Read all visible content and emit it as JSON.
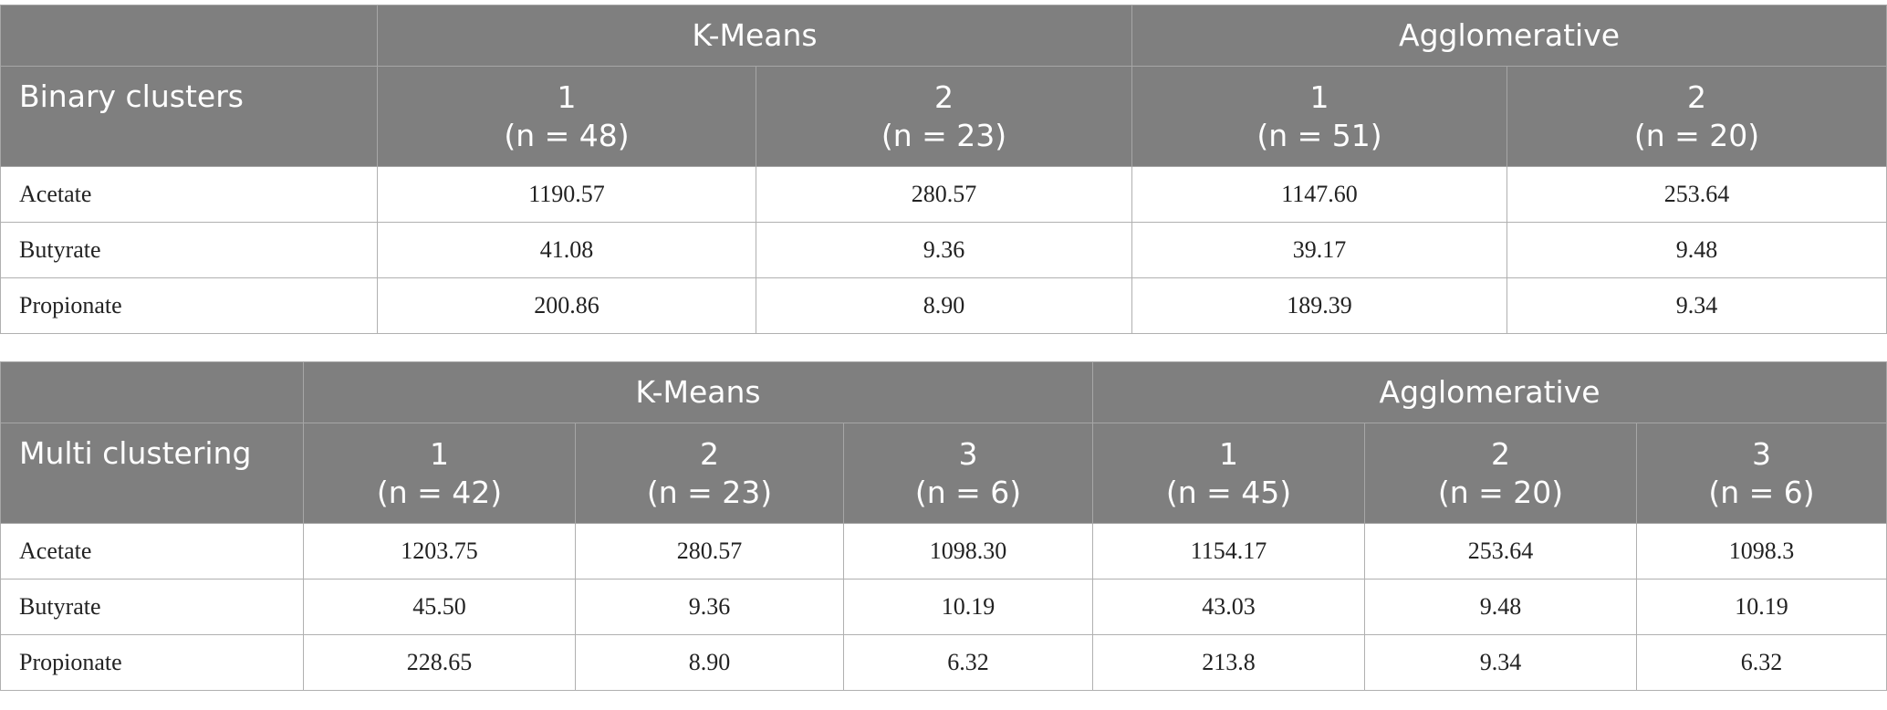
{
  "tables": [
    {
      "corner": "Binary clusters",
      "groups": [
        {
          "name": "K-Means",
          "span": 2
        },
        {
          "name": "Agglomerative",
          "span": 2
        }
      ],
      "columns": [
        {
          "label": "1",
          "count": "(n = 48)"
        },
        {
          "label": "2",
          "count": "(n = 23)"
        },
        {
          "label": "1",
          "count": "(n = 51)"
        },
        {
          "label": "2",
          "count": "(n = 20)"
        }
      ],
      "rows": [
        {
          "label": "Acetate",
          "cells": [
            "1190.57",
            "280.57",
            "1147.60",
            "253.64"
          ]
        },
        {
          "label": "Butyrate",
          "cells": [
            "41.08",
            "9.36",
            "39.17",
            "9.48"
          ]
        },
        {
          "label": "Propionate",
          "cells": [
            "200.86",
            "8.90",
            "189.39",
            "9.34"
          ]
        }
      ]
    },
    {
      "corner": "Multi clustering",
      "groups": [
        {
          "name": "K-Means",
          "span": 3
        },
        {
          "name": "Agglomerative",
          "span": 3
        }
      ],
      "columns": [
        {
          "label": "1",
          "count": "(n = 42)"
        },
        {
          "label": "2",
          "count": "(n = 23)"
        },
        {
          "label": "3",
          "count": "(n = 6)"
        },
        {
          "label": "1",
          "count": "(n = 45)"
        },
        {
          "label": "2",
          "count": "(n = 20)"
        },
        {
          "label": "3",
          "count": "(n = 6)"
        }
      ],
      "rows": [
        {
          "label": "Acetate",
          "cells": [
            "1203.75",
            "280.57",
            "1098.30",
            "1154.17",
            "253.64",
            "1098.3"
          ]
        },
        {
          "label": "Butyrate",
          "cells": [
            "45.50",
            "9.36",
            "10.19",
            "43.03",
            "9.48",
            "10.19"
          ]
        },
        {
          "label": "Propionate",
          "cells": [
            "228.65",
            "8.90",
            "6.32",
            "213.8",
            "9.34",
            "6.32"
          ]
        }
      ]
    }
  ]
}
